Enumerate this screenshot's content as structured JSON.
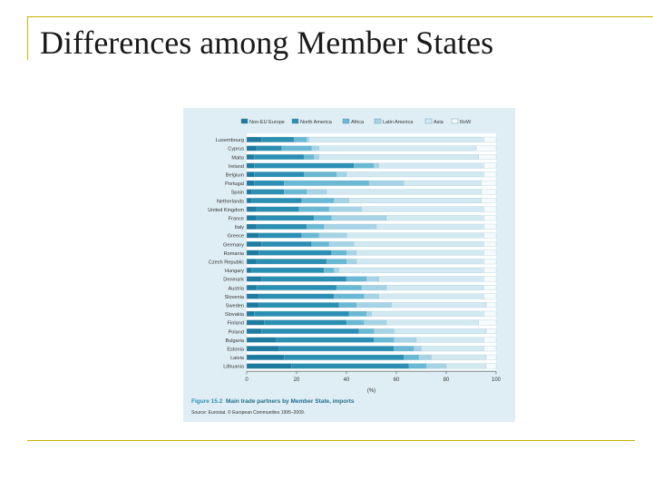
{
  "slide": {
    "title": "Differences among Member States"
  },
  "figure": {
    "number": "Figure 15.2",
    "caption": "Main trade partners by Member State, imports",
    "source": "Source: Eurostat. © European Communities 1995–2009."
  },
  "chart_data": {
    "type": "bar",
    "orientation": "horizontal",
    "stacked": true,
    "categories": [
      "Luxembourg",
      "Cyprus",
      "Malta",
      "Ireland",
      "Belgium",
      "Portugal",
      "Spain",
      "Netherlands",
      "United Kingdom",
      "France",
      "Italy",
      "Greece",
      "Germany",
      "Romania",
      "Czech Republic",
      "Hungary",
      "Denmark",
      "Austria",
      "Slovenia",
      "Sweden",
      "Slovakia",
      "Finland",
      "Poland",
      "Bulgaria",
      "Estonia",
      "Latvia",
      "Lithuania"
    ],
    "series": [
      {
        "name": "Non-EU Europe",
        "values": [
          6,
          4,
          3,
          3,
          3,
          3,
          2,
          2,
          4,
          4,
          4,
          5,
          6,
          5,
          4,
          2,
          6,
          4,
          5,
          5,
          3,
          7,
          6,
          12,
          13,
          15,
          18
        ]
      },
      {
        "name": "North America",
        "values": [
          13,
          10,
          20,
          40,
          20,
          12,
          13,
          20,
          17,
          23,
          20,
          17,
          20,
          29,
          28,
          29,
          34,
          32,
          30,
          32,
          38,
          33,
          39,
          39,
          46,
          48,
          47
        ]
      },
      {
        "name": "Africa",
        "values": [
          5,
          12,
          4,
          8,
          13,
          34,
          9,
          13,
          12,
          7,
          7,
          7,
          7,
          6,
          8,
          4,
          8,
          10,
          12,
          7,
          7,
          7,
          6,
          8,
          8,
          6,
          7
        ]
      },
      {
        "name": "Latin America",
        "values": [
          1,
          3,
          2,
          2,
          4,
          14,
          8,
          6,
          13,
          22,
          21,
          11,
          10,
          4,
          4,
          2,
          5,
          10,
          6,
          14,
          2,
          9,
          8,
          9,
          3,
          5,
          8
        ]
      },
      {
        "name": "Asia",
        "values": [
          70,
          63,
          64,
          42,
          55,
          31,
          62,
          53,
          49,
          39,
          43,
          55,
          52,
          51,
          51,
          58,
          42,
          39,
          42,
          38,
          45,
          37,
          37,
          27,
          25,
          22,
          16
        ]
      },
      {
        "name": "RoW",
        "values": [
          5,
          8,
          7,
          5,
          5,
          6,
          6,
          6,
          5,
          5,
          5,
          5,
          5,
          5,
          5,
          5,
          5,
          5,
          5,
          4,
          5,
          7,
          4,
          5,
          5,
          4,
          4
        ]
      }
    ],
    "xlim": [
      0,
      100
    ],
    "xticks": [
      "0",
      "20",
      "40",
      "60",
      "80",
      "100"
    ],
    "xlabel": "(%)",
    "legend_position": "top",
    "colors": [
      "#1e7aa1",
      "#2b8fb3",
      "#69b8d4",
      "#a6d4e6",
      "#d2e9f2",
      "#f6fbfd"
    ]
  }
}
